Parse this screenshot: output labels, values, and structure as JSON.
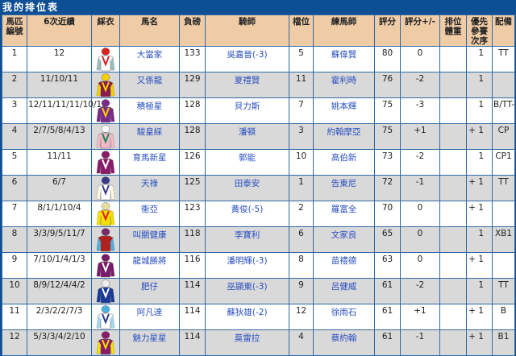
{
  "title": "我的排位表",
  "columns": [
    "馬匹編號",
    "6次近績",
    "綵衣",
    "馬名",
    "負磅",
    "騎師",
    "檔位",
    "練馬師",
    "評分",
    "評分+/-",
    "排位體重",
    "優先參賽次序",
    "配備"
  ],
  "rows": [
    {
      "no": "1",
      "form": "12",
      "horse": "大當家",
      "weight": "133",
      "jockey": "吳嘉晉(-3)",
      "draw": "5",
      "trainer": "蘇偉賢",
      "rating": "80",
      "change": "0",
      "body_weight": "",
      "priority": "1",
      "gear": "TT",
      "silk": {
        "cap": "#d22",
        "body": "#fff",
        "sleeve": "#9bb",
        "accent": "#d22"
      }
    },
    {
      "no": "2",
      "form": "11/10/11",
      "horse": "又係龍",
      "weight": "129",
      "jockey": "夏禮賢",
      "draw": "11",
      "trainer": "霍利時",
      "rating": "76",
      "change": "-2",
      "body_weight": "",
      "priority": "1",
      "gear": "",
      "silk": {
        "cap": "#f5d000",
        "body": "#8b1a4a",
        "sleeve": "#f5d000",
        "accent": "#f5d000"
      }
    },
    {
      "no": "3",
      "form": "12/11/11/11/10/12",
      "horse": "積極星",
      "weight": "128",
      "jockey": "貝力斯",
      "draw": "7",
      "trainer": "姚本輝",
      "rating": "75",
      "change": "-3",
      "body_weight": "",
      "priority": "1",
      "gear": "B/TT-",
      "silk": {
        "cap": "#7a2a8a",
        "body": "#7a2a8a",
        "sleeve": "#7a2a8a",
        "accent": "#f5d000"
      }
    },
    {
      "no": "4",
      "form": "2/7/5/8/4/13",
      "horse": "駿皇綵",
      "weight": "128",
      "jockey": "潘頓",
      "draw": "3",
      "trainer": "約翰摩亞",
      "rating": "75",
      "change": "+1",
      "body_weight": "",
      "priority": "+ 1",
      "gear": "CP",
      "silk": {
        "cap": "#fff",
        "body": "#f2b8c8",
        "sleeve": "#f2b8c8",
        "accent": "#1a8a5a"
      }
    },
    {
      "no": "5",
      "form": "11/11",
      "horse": "育馬新星",
      "weight": "126",
      "jockey": "郭能",
      "draw": "10",
      "trainer": "高伯新",
      "rating": "73",
      "change": "-2",
      "body_weight": "",
      "priority": "1",
      "gear": "CP1",
      "silk": {
        "cap": "#8a1a6a",
        "body": "#8a1a6a",
        "sleeve": "#8a1a6a",
        "accent": "#fff"
      }
    },
    {
      "no": "6",
      "form": "6/7",
      "horse": "天祿",
      "weight": "125",
      "jockey": "田泰安",
      "draw": "1",
      "trainer": "告東尼",
      "rating": "72",
      "change": "-1",
      "body_weight": "",
      "priority": "+ 1",
      "gear": "TT",
      "silk": {
        "cap": "#3a3a8a",
        "body": "#fff",
        "sleeve": "#fff8e0",
        "accent": "#3a3a8a"
      }
    },
    {
      "no": "7",
      "form": "8/1/1/10/4",
      "horse": "衝亞",
      "weight": "123",
      "jockey": "黃俊(-5)",
      "draw": "2",
      "trainer": "羅富全",
      "rating": "70",
      "change": "0",
      "body_weight": "",
      "priority": "+ 1",
      "gear": "",
      "silk": {
        "cap": "#e8e0a0",
        "body": "#f5e000",
        "sleeve": "#f5e000",
        "accent": "#e02020"
      }
    },
    {
      "no": "8",
      "form": "3/3/9/5/11/7",
      "horse": "叫關健康",
      "weight": "118",
      "jockey": "李寶利",
      "draw": "6",
      "trainer": "文家良",
      "rating": "65",
      "change": "0",
      "body_weight": "",
      "priority": "1",
      "gear": "XB1",
      "silk": {
        "cap": "#7a2a6a",
        "body": "#b02020",
        "sleeve": "#4ab0e0",
        "accent": "#b02020"
      }
    },
    {
      "no": "9",
      "form": "7/10/1/4/1/3",
      "horse": "龍城勝將",
      "weight": "116",
      "jockey": "潘明輝(-3)",
      "draw": "8",
      "trainer": "苗禮德",
      "rating": "63",
      "change": "0",
      "body_weight": "",
      "priority": "+ 1",
      "gear": "",
      "silk": {
        "cap": "#7a1a6a",
        "body": "#7a1a6a",
        "sleeve": "#7a1a6a",
        "accent": "#fff"
      }
    },
    {
      "no": "10",
      "form": "8/9/12/4/4/2",
      "horse": "肥仔",
      "weight": "114",
      "jockey": "巫顯東(-3)",
      "draw": "9",
      "trainer": "呂健威",
      "rating": "61",
      "change": "-2",
      "body_weight": "",
      "priority": "1",
      "gear": "TT",
      "silk": {
        "cap": "#eee",
        "body": "#1a3a9a",
        "sleeve": "#1a3a9a",
        "accent": "#fff"
      }
    },
    {
      "no": "11",
      "form": "2/3/2/2/7/3",
      "horse": "阿凡達",
      "weight": "114",
      "jockey": "蘇狄雄(-2)",
      "draw": "12",
      "trainer": "徐雨石",
      "rating": "61",
      "change": "+1",
      "body_weight": "",
      "priority": "+ 1",
      "gear": "B",
      "silk": {
        "cap": "#4ab0e0",
        "body": "#fff",
        "sleeve": "#a0d8f0",
        "accent": "#2a3a8a"
      }
    },
    {
      "no": "12",
      "form": "5/3/3/4/2/10",
      "horse": "魅力星星",
      "weight": "114",
      "jockey": "莫雷拉",
      "draw": "4",
      "trainer": "蔡約翰",
      "rating": "61",
      "change": "-1",
      "body_weight": "",
      "priority": "+ 1",
      "gear": "B1",
      "silk": {
        "cap": "#8a1a6a",
        "body": "#8a1a6a",
        "sleeve": "#f5e000",
        "accent": "#f5e000"
      }
    }
  ]
}
